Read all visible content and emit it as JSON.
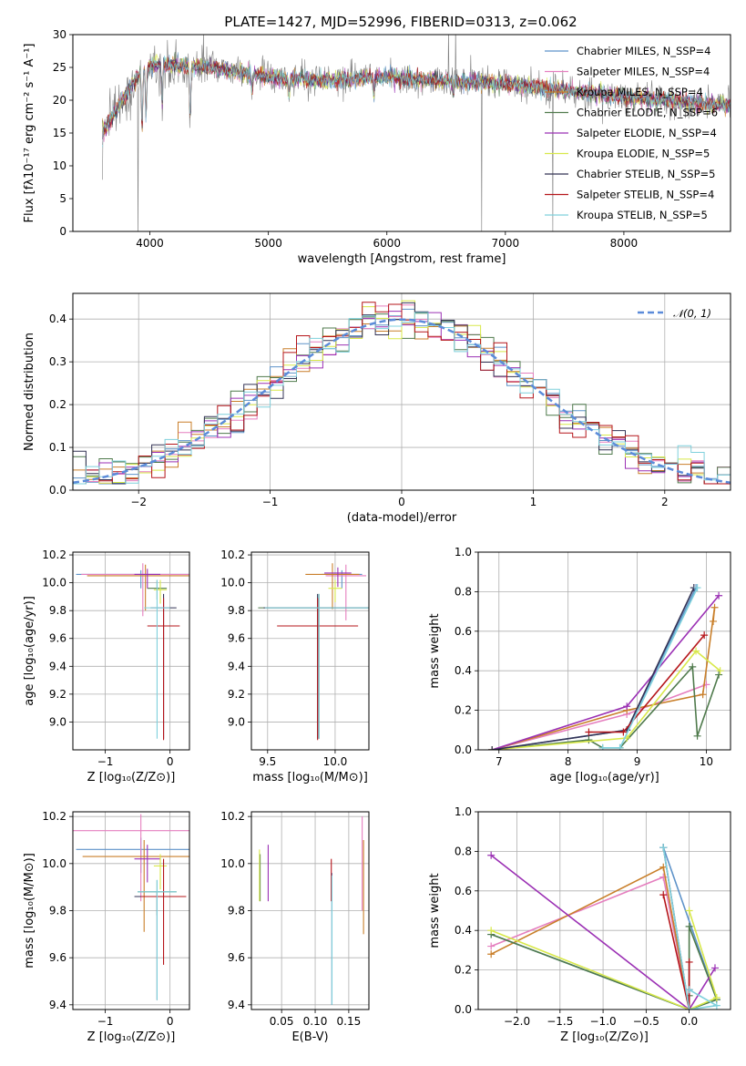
{
  "figure_title": "PLATE=1427, MJD=52996, FIBERID=0313, z=0.062",
  "colors": {
    "chabrier_miles": "#5e93c9",
    "salpeter_miles": "#e57fbf",
    "kroupa_miles": "#c97f2a",
    "chabrier_elodie": "#4f7a4c",
    "salpeter_elodie": "#9b30b4",
    "kroupa_elodie": "#d8e84a",
    "chabrier_stelib": "#333355",
    "salpeter_stelib": "#b5151a",
    "kroupa_stelib": "#7fd0dc",
    "data": "#808080",
    "normal": "#5b8bd9"
  },
  "chart_data": [
    {
      "id": "spectrum",
      "type": "line",
      "xlabel": "wavelength [Angstrom, rest frame]",
      "ylabel": "Flux [fλ10⁻¹⁷ erg cm⁻² s⁻¹ A⁻¹]",
      "xlim": [
        3350,
        8900
      ],
      "ylim": [
        0,
        30
      ],
      "xticks": [
        "4000",
        "5000",
        "6000",
        "7000",
        "8000"
      ],
      "yticks": [
        "0",
        "5",
        "10",
        "15",
        "20",
        "25",
        "30"
      ],
      "legend_position": "top-right",
      "legend": [
        {
          "label": "Chabrier MILES, N_SSP=4",
          "color_key": "chabrier_miles"
        },
        {
          "label": "Salpeter MILES, N_SSP=4",
          "color_key": "salpeter_miles"
        },
        {
          "label": "Kroupa MILES, N_SSP=4",
          "color_key": "kroupa_miles"
        },
        {
          "label": "Chabrier ELODIE, N_SSP=6",
          "color_key": "chabrier_elodie"
        },
        {
          "label": "Salpeter ELODIE, N_SSP=4",
          "color_key": "salpeter_elodie"
        },
        {
          "label": "Kroupa ELODIE, N_SSP=5",
          "color_key": "kroupa_elodie"
        },
        {
          "label": "Chabrier STELIB, N_SSP=5",
          "color_key": "chabrier_stelib"
        },
        {
          "label": "Salpeter STELIB, N_SSP=4",
          "color_key": "salpeter_stelib"
        },
        {
          "label": "Kroupa STELIB, N_SSP=5",
          "color_key": "kroupa_stelib"
        }
      ],
      "continuum": [
        [
          3600,
          15
        ],
        [
          3700,
          18
        ],
        [
          3800,
          21
        ],
        [
          3950,
          25
        ],
        [
          4100,
          25.5
        ],
        [
          4500,
          25
        ],
        [
          5000,
          23.5
        ],
        [
          5500,
          23
        ],
        [
          6000,
          23.5
        ],
        [
          6500,
          23
        ],
        [
          7000,
          22.5
        ],
        [
          7500,
          21.5
        ],
        [
          8000,
          20.5
        ],
        [
          8500,
          19.8
        ],
        [
          8900,
          19.2
        ]
      ],
      "absorption": [
        [
          3934,
          10
        ],
        [
          3968,
          9
        ],
        [
          4102,
          7
        ],
        [
          4340,
          9
        ],
        [
          4861,
          3
        ],
        [
          5175,
          2.5
        ],
        [
          5890,
          3
        ],
        [
          6563,
          2
        ]
      ],
      "spikes": [
        [
          3900,
          -25
        ],
        [
          6520,
          8
        ],
        [
          6580,
          8
        ],
        [
          6800,
          -23
        ],
        [
          7400,
          -23
        ]
      ]
    },
    {
      "id": "residuals",
      "type": "line",
      "xlabel": "(data-model)/error",
      "ylabel": "Normed distribution",
      "xlim": [
        -2.5,
        2.5
      ],
      "ylim": [
        0,
        0.46
      ],
      "xticks": [
        "−2",
        "−1",
        "0",
        "1",
        "2"
      ],
      "yticks": [
        "0.0",
        "0.1",
        "0.2",
        "0.3",
        "0.4"
      ],
      "legend_position": "top-right",
      "legend_label": "𝒩(0, 1)",
      "bin_width": 0.1
    },
    {
      "id": "age_vs_Z",
      "type": "scatter",
      "xlabel": "Z [log₁₀(Z/Z⊙)]",
      "ylabel": "age  [log₁₀(age/yr)]",
      "xlim": [
        -1.5,
        0.3
      ],
      "ylim": [
        8.8,
        10.22
      ],
      "xticks": [
        "−1",
        "0"
      ],
      "yticks": [
        "9.0",
        "9.2",
        "9.4",
        "9.6",
        "9.8",
        "10.0",
        "10.2"
      ],
      "points": [
        {
          "x": -0.45,
          "y": 10.06,
          "xerr": 1.0,
          "yerr": [
            0.1,
            0.03
          ],
          "color_key": "chabrier_miles"
        },
        {
          "x": -0.42,
          "y": 10.06,
          "xerr": 0.95,
          "yerr": [
            0.3,
            0.08
          ],
          "color_key": "salpeter_miles"
        },
        {
          "x": -0.38,
          "y": 10.05,
          "xerr": 0.9,
          "yerr": [
            0.25,
            0.08
          ],
          "color_key": "kroupa_miles"
        },
        {
          "x": -0.2,
          "y": 9.96,
          "xerr": 0.15,
          "yerr": [
            0.08,
            0.06
          ],
          "color_key": "chabrier_elodie"
        },
        {
          "x": -0.35,
          "y": 10.06,
          "xerr": 0.2,
          "yerr": [
            0.1,
            0.04
          ],
          "color_key": "salpeter_elodie"
        },
        {
          "x": -0.15,
          "y": 9.95,
          "xerr": 0.1,
          "yerr": [
            0.1,
            0.07
          ],
          "color_key": "kroupa_elodie"
        },
        {
          "x": -0.1,
          "y": 9.82,
          "xerr": 0.2,
          "yerr": [
            0.94,
            0.1
          ],
          "color_key": "chabrier_stelib"
        },
        {
          "x": -0.1,
          "y": 9.69,
          "xerr": 0.25,
          "yerr": [
            0.82,
            0.2
          ],
          "color_key": "salpeter_stelib"
        },
        {
          "x": -0.2,
          "y": 9.82,
          "xerr": 0.2,
          "yerr": [
            0.94,
            0.2
          ],
          "color_key": "kroupa_stelib"
        }
      ]
    },
    {
      "id": "age_vs_mass",
      "type": "scatter",
      "xlabel": "mass [log₁₀(M/M⊙)]",
      "ylabel": "",
      "xlim": [
        9.38,
        10.25
      ],
      "ylim": [
        8.8,
        10.22
      ],
      "xticks": [
        "9.5",
        "10.0"
      ],
      "yticks": [
        "9.0",
        "9.2",
        "9.4",
        "9.6",
        "9.8",
        "10.0",
        "10.2"
      ],
      "points": [
        {
          "x": 10.05,
          "y": 10.06,
          "xerr": 0.15,
          "yerr": [
            0.1,
            0.03
          ],
          "color_key": "chabrier_miles"
        },
        {
          "x": 10.08,
          "y": 10.05,
          "xerr": 0.15,
          "yerr": [
            0.32,
            0.08
          ],
          "color_key": "salpeter_miles"
        },
        {
          "x": 9.98,
          "y": 10.06,
          "xerr": 0.2,
          "yerr": [
            0.25,
            0.08
          ],
          "color_key": "kroupa_miles"
        },
        {
          "x": 9.88,
          "y": 9.82,
          "xerr": 0.45,
          "yerr": [
            0.94,
            0.1
          ],
          "color_key": "chabrier_elodie"
        },
        {
          "x": 10.02,
          "y": 10.07,
          "xerr": 0.1,
          "yerr": [
            0.1,
            0.04
          ],
          "color_key": "salpeter_elodie"
        },
        {
          "x": 10.0,
          "y": 9.96,
          "xerr": 0.05,
          "yerr": [
            0.1,
            0.06
          ],
          "color_key": "kroupa_elodie"
        },
        {
          "x": 9.87,
          "y": 9.82,
          "xerr": 0.4,
          "yerr": [
            0.94,
            0.1
          ],
          "color_key": "chabrier_stelib"
        },
        {
          "x": 9.87,
          "y": 9.69,
          "xerr": 0.3,
          "yerr": [
            0.82,
            0.2
          ],
          "color_key": "salpeter_stelib"
        },
        {
          "x": 9.88,
          "y": 9.82,
          "xerr": 0.4,
          "yerr": [
            0.94,
            0.1
          ],
          "color_key": "kroupa_stelib"
        }
      ]
    },
    {
      "id": "weight_vs_age",
      "type": "line",
      "xlabel": "age  [log₁₀(age/yr)]",
      "ylabel": "mass weight",
      "xlim": [
        6.7,
        10.35
      ],
      "ylim": [
        0,
        1.0
      ],
      "xticks": [
        "7",
        "8",
        "9",
        "10"
      ],
      "yticks": [
        "0.0",
        "0.2",
        "0.4",
        "0.6",
        "0.8",
        "1.0"
      ],
      "series": [
        {
          "color_key": "chabrier_miles",
          "x": [
            6.9,
            8.85,
            9.85
          ],
          "y": [
            0.0,
            0.1,
            0.82
          ]
        },
        {
          "color_key": "salpeter_miles",
          "x": [
            6.9,
            8.85,
            10.0
          ],
          "y": [
            0.0,
            0.18,
            0.33
          ]
        },
        {
          "color_key": "kroupa_miles",
          "x": [
            6.9,
            8.85,
            9.95,
            10.12,
            10.1
          ],
          "y": [
            0.0,
            0.2,
            0.28,
            0.72,
            0.65
          ]
        },
        {
          "color_key": "chabrier_elodie",
          "x": [
            6.9,
            8.3,
            8.5,
            8.75,
            9.8,
            9.87,
            10.18
          ],
          "y": [
            0.0,
            0.05,
            0.01,
            0.01,
            0.42,
            0.07,
            0.38
          ]
        },
        {
          "color_key": "salpeter_elodie",
          "x": [
            6.9,
            8.85,
            10.18
          ],
          "y": [
            0.0,
            0.22,
            0.78
          ]
        },
        {
          "color_key": "kroupa_elodie",
          "x": [
            6.9,
            8.85,
            9.85,
            10.2
          ],
          "y": [
            0.0,
            0.06,
            0.5,
            0.4
          ]
        },
        {
          "color_key": "chabrier_stelib",
          "x": [
            6.9,
            8.85,
            9.82
          ],
          "y": [
            0.0,
            0.1,
            0.82
          ]
        },
        {
          "color_key": "salpeter_stelib",
          "x": [
            8.3,
            8.8,
            9.97
          ],
          "y": [
            0.09,
            0.09,
            0.58
          ]
        },
        {
          "color_key": "kroupa_stelib",
          "x": [
            8.5,
            8.75,
            9.87
          ],
          "y": [
            0.01,
            0.01,
            0.82
          ]
        }
      ]
    },
    {
      "id": "mass_vs_Z",
      "type": "scatter",
      "xlabel": "Z [log₁₀(Z/Z⊙)]",
      "ylabel": "mass [log₁₀(M/M⊙)]",
      "xlim": [
        -1.5,
        0.3
      ],
      "ylim": [
        9.38,
        10.22
      ],
      "xticks": [
        "−1",
        "0"
      ],
      "yticks": [
        "9.4",
        "9.6",
        "9.8",
        "10.0",
        "10.2"
      ],
      "points": [
        {
          "x": -0.45,
          "y": 10.06,
          "xerr": 1.0,
          "yerr": [
            0.1,
            0.05
          ],
          "color_key": "chabrier_miles"
        },
        {
          "x": -0.45,
          "y": 10.14,
          "xerr": 1.05,
          "yerr": [
            0.3,
            0.07
          ],
          "color_key": "salpeter_miles"
        },
        {
          "x": -0.4,
          "y": 10.03,
          "xerr": 0.95,
          "yerr": [
            0.32,
            0.07
          ],
          "color_key": "kroupa_miles"
        },
        {
          "x": -0.2,
          "y": 9.88,
          "xerr": 0.3,
          "yerr": [
            0.1,
            0.05
          ],
          "color_key": "chabrier_elodie"
        },
        {
          "x": -0.35,
          "y": 10.02,
          "xerr": 0.2,
          "yerr": [
            0.1,
            0.06
          ],
          "color_key": "salpeter_elodie"
        },
        {
          "x": -0.15,
          "y": 9.99,
          "xerr": 0.1,
          "yerr": [
            0.1,
            0.05
          ],
          "color_key": "kroupa_elodie"
        },
        {
          "x": -0.2,
          "y": 9.86,
          "xerr": 0.35,
          "yerr": [
            0.44,
            0.02
          ],
          "color_key": "chabrier_stelib"
        },
        {
          "x": -0.1,
          "y": 9.86,
          "xerr": 0.35,
          "yerr": [
            0.29,
            0.16
          ],
          "color_key": "salpeter_stelib"
        },
        {
          "x": -0.2,
          "y": 9.88,
          "xerr": 0.3,
          "yerr": [
            0.46,
            0.05
          ],
          "color_key": "kroupa_stelib"
        }
      ]
    },
    {
      "id": "mass_vs_ebv",
      "type": "scatter",
      "xlabel": "E(B-V)",
      "ylabel": "",
      "xlim": [
        0.005,
        0.18
      ],
      "ylim": [
        9.38,
        10.22
      ],
      "xticks": [
        "0.05",
        "0.10",
        "0.15"
      ],
      "yticks": [
        "9.4",
        "9.6",
        "9.8",
        "10.0",
        "10.2"
      ],
      "points": [
        {
          "x": 0.125,
          "y": 9.9,
          "xerr": 0,
          "yerr": [
            0.5,
            0.06
          ],
          "color_key": "chabrier_miles"
        },
        {
          "x": 0.17,
          "y": 10.0,
          "xerr": 0,
          "yerr": [
            0.2,
            0.2
          ],
          "color_key": "salpeter_miles"
        },
        {
          "x": 0.172,
          "y": 9.9,
          "xerr": 0,
          "yerr": [
            0.2,
            0.2
          ],
          "color_key": "kroupa_miles"
        },
        {
          "x": 0.018,
          "y": 9.94,
          "xerr": 0,
          "yerr": [
            0.1,
            0.1
          ],
          "color_key": "chabrier_elodie"
        },
        {
          "x": 0.03,
          "y": 9.96,
          "xerr": 0,
          "yerr": [
            0.12,
            0.12
          ],
          "color_key": "salpeter_elodie"
        },
        {
          "x": 0.017,
          "y": 9.95,
          "xerr": 0,
          "yerr": [
            0.11,
            0.11
          ],
          "color_key": "kroupa_elodie"
        },
        {
          "x": 0.125,
          "y": 9.9,
          "xerr": 0,
          "yerr": [
            0.5,
            0.05
          ],
          "color_key": "chabrier_stelib"
        },
        {
          "x": 0.124,
          "y": 9.94,
          "xerr": 0,
          "yerr": [
            0.1,
            0.08
          ],
          "color_key": "salpeter_stelib"
        },
        {
          "x": 0.125,
          "y": 9.9,
          "xerr": 0,
          "yerr": [
            0.5,
            0.05
          ],
          "color_key": "kroupa_stelib"
        }
      ]
    },
    {
      "id": "weight_vs_Z",
      "type": "line",
      "xlabel": "Z [log₁₀(Z/Z⊙)]",
      "ylabel": "mass weight",
      "xlim": [
        -2.45,
        0.48
      ],
      "ylim": [
        0,
        1.0
      ],
      "xticks": [
        "−2.0",
        "−1.5",
        "−1.0",
        "−0.5",
        "0.0"
      ],
      "yticks": [
        "0.0",
        "0.2",
        "0.4",
        "0.6",
        "0.8",
        "1.0"
      ],
      "series": [
        {
          "color_key": "chabrier_miles",
          "x": [
            -2.3,
            0.0,
            0.32,
            -0.3,
            -0.3
          ],
          "y": [
            0.38,
            0.0,
            0.05,
            0.82,
            0.82
          ]
        },
        {
          "color_key": "salpeter_miles",
          "x": [
            -2.3,
            -0.3,
            0.0
          ],
          "y": [
            0.32,
            0.67,
            0.0
          ]
        },
        {
          "color_key": "kroupa_miles",
          "x": [
            -2.3,
            -0.3,
            0.0
          ],
          "y": [
            0.28,
            0.72,
            0.0
          ]
        },
        {
          "color_key": "chabrier_elodie",
          "x": [
            -2.3,
            0.0,
            0.32,
            0.0,
            0.0
          ],
          "y": [
            0.38,
            0.0,
            0.05,
            0.42,
            0.07
          ]
        },
        {
          "color_key": "salpeter_elodie",
          "x": [
            -2.3,
            0.0,
            0.3
          ],
          "y": [
            0.78,
            0.0,
            0.21
          ]
        },
        {
          "color_key": "kroupa_elodie",
          "x": [
            -2.3,
            0.0,
            0.32,
            0.0
          ],
          "y": [
            0.4,
            0.0,
            0.06,
            0.5
          ]
        },
        {
          "color_key": "chabrier_stelib",
          "x": [
            -0.3,
            0.0,
            0.0
          ],
          "y": [
            0.82,
            0.0,
            0.1
          ]
        },
        {
          "color_key": "salpeter_stelib",
          "x": [
            -0.3,
            0.0,
            0.0
          ],
          "y": [
            0.58,
            0.0,
            0.24
          ]
        },
        {
          "color_key": "kroupa_stelib",
          "x": [
            -0.3,
            0.0,
            0.32,
            0.0
          ],
          "y": [
            0.82,
            0.0,
            0.02,
            0.1
          ]
        }
      ]
    }
  ]
}
